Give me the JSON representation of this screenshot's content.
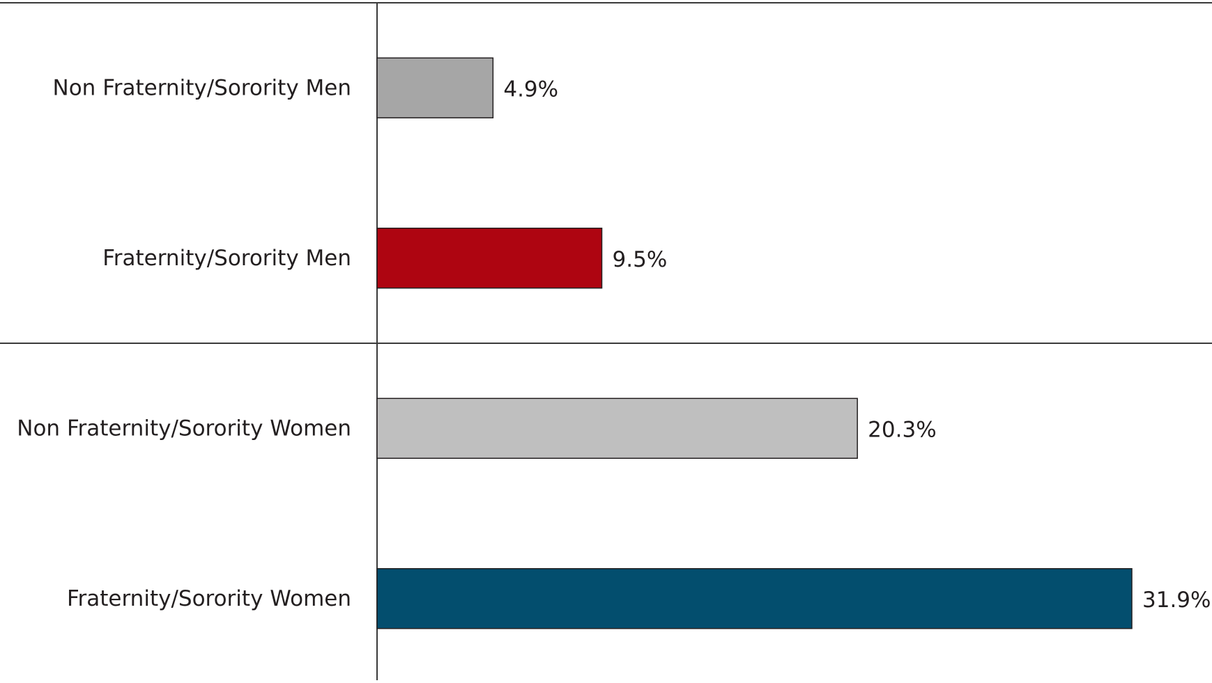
{
  "chart_data": {
    "type": "bar",
    "orientation": "horizontal",
    "categories": [
      "Non Fraternity/Sorority Men",
      "Fraternity/Sorority Men",
      "Non Fraternity/Sorority Women",
      "Fraternity/Sorority Women"
    ],
    "values": [
      4.9,
      9.5,
      20.3,
      31.9
    ],
    "value_labels": [
      "4.9%",
      "9.5%",
      "20.3%",
      "31.9%"
    ],
    "colors": [
      "#a6a6a6",
      "#ae0511",
      "#bfbfbf",
      "#034e6e"
    ],
    "title": "",
    "xlabel": "",
    "ylabel": "",
    "xlim": [
      0,
      36
    ],
    "group_dividers_after": [
      1
    ],
    "grid": false,
    "legend": "none"
  }
}
